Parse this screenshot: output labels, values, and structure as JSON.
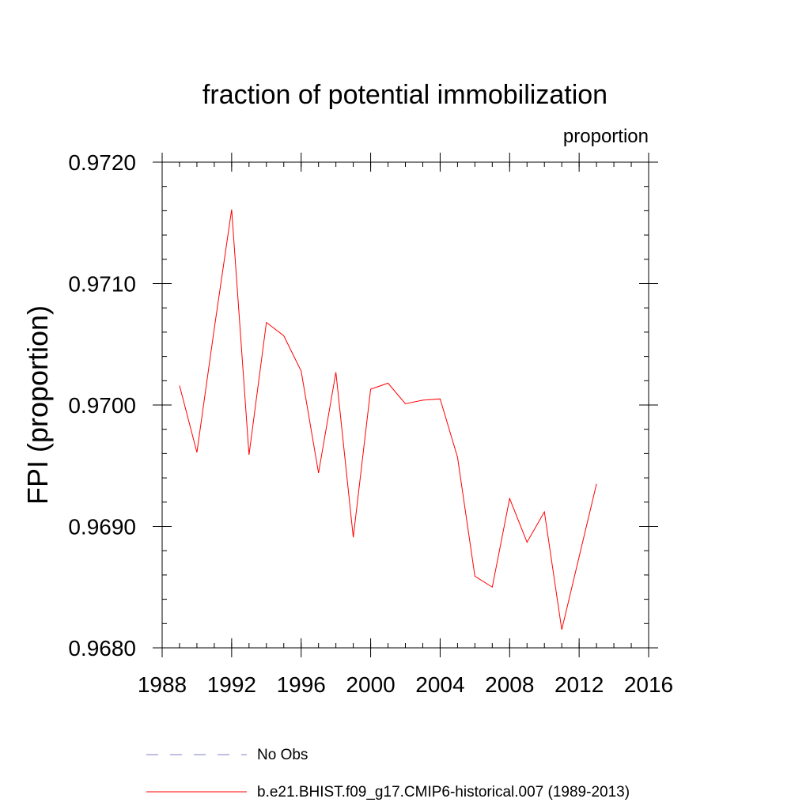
{
  "chart_data": {
    "type": "line",
    "title": "fraction of potential immobilization",
    "units_label": "proportion",
    "xlabel": "",
    "ylabel": "FPI  (proportion)",
    "xlim": [
      1988,
      2016
    ],
    "ylim": [
      0.968,
      0.972
    ],
    "x_ticks": [
      {
        "value": 1988,
        "label": "1988"
      },
      {
        "value": 1992,
        "label": "1992"
      },
      {
        "value": 1996,
        "label": "1996"
      },
      {
        "value": 2000,
        "label": "2000"
      },
      {
        "value": 2004,
        "label": "2004"
      },
      {
        "value": 2008,
        "label": "2008"
      },
      {
        "value": 2012,
        "label": "2012"
      },
      {
        "value": 2016,
        "label": "2016"
      }
    ],
    "x_minor_step": 1,
    "y_ticks": [
      {
        "value": 0.968,
        "label": "0.9680"
      },
      {
        "value": 0.969,
        "label": "0.9690"
      },
      {
        "value": 0.97,
        "label": "0.9700"
      },
      {
        "value": 0.971,
        "label": "0.9710"
      },
      {
        "value": 0.972,
        "label": "0.9720"
      }
    ],
    "y_minor_step": 0.0002,
    "series": [
      {
        "name": "No Obs",
        "color": "#8080c0",
        "dash": "dashed",
        "x": [],
        "values": []
      },
      {
        "name": "b.e21.BHIST.f09_g17.CMIP6-historical.007 (1989-2013)",
        "color": "#ff0000",
        "dash": "solid",
        "x": [
          1989,
          1990,
          1991,
          1992,
          1993,
          1994,
          1995,
          1996,
          1997,
          1998,
          1999,
          2000,
          2001,
          2002,
          2003,
          2004,
          2005,
          2006,
          2007,
          2008,
          2009,
          2010,
          2011,
          2012,
          2013
        ],
        "values": [
          0.97016,
          0.96961,
          0.97063,
          0.97161,
          0.96959,
          0.97068,
          0.97057,
          0.97028,
          0.96944,
          0.97027,
          0.96891,
          0.97013,
          0.97018,
          0.97001,
          0.97004,
          0.97005,
          0.96957,
          0.96859,
          0.9685,
          0.96923,
          0.96887,
          0.96912,
          0.96815,
          0.96875,
          0.96935
        ]
      }
    ],
    "legend_position": "bottom"
  }
}
